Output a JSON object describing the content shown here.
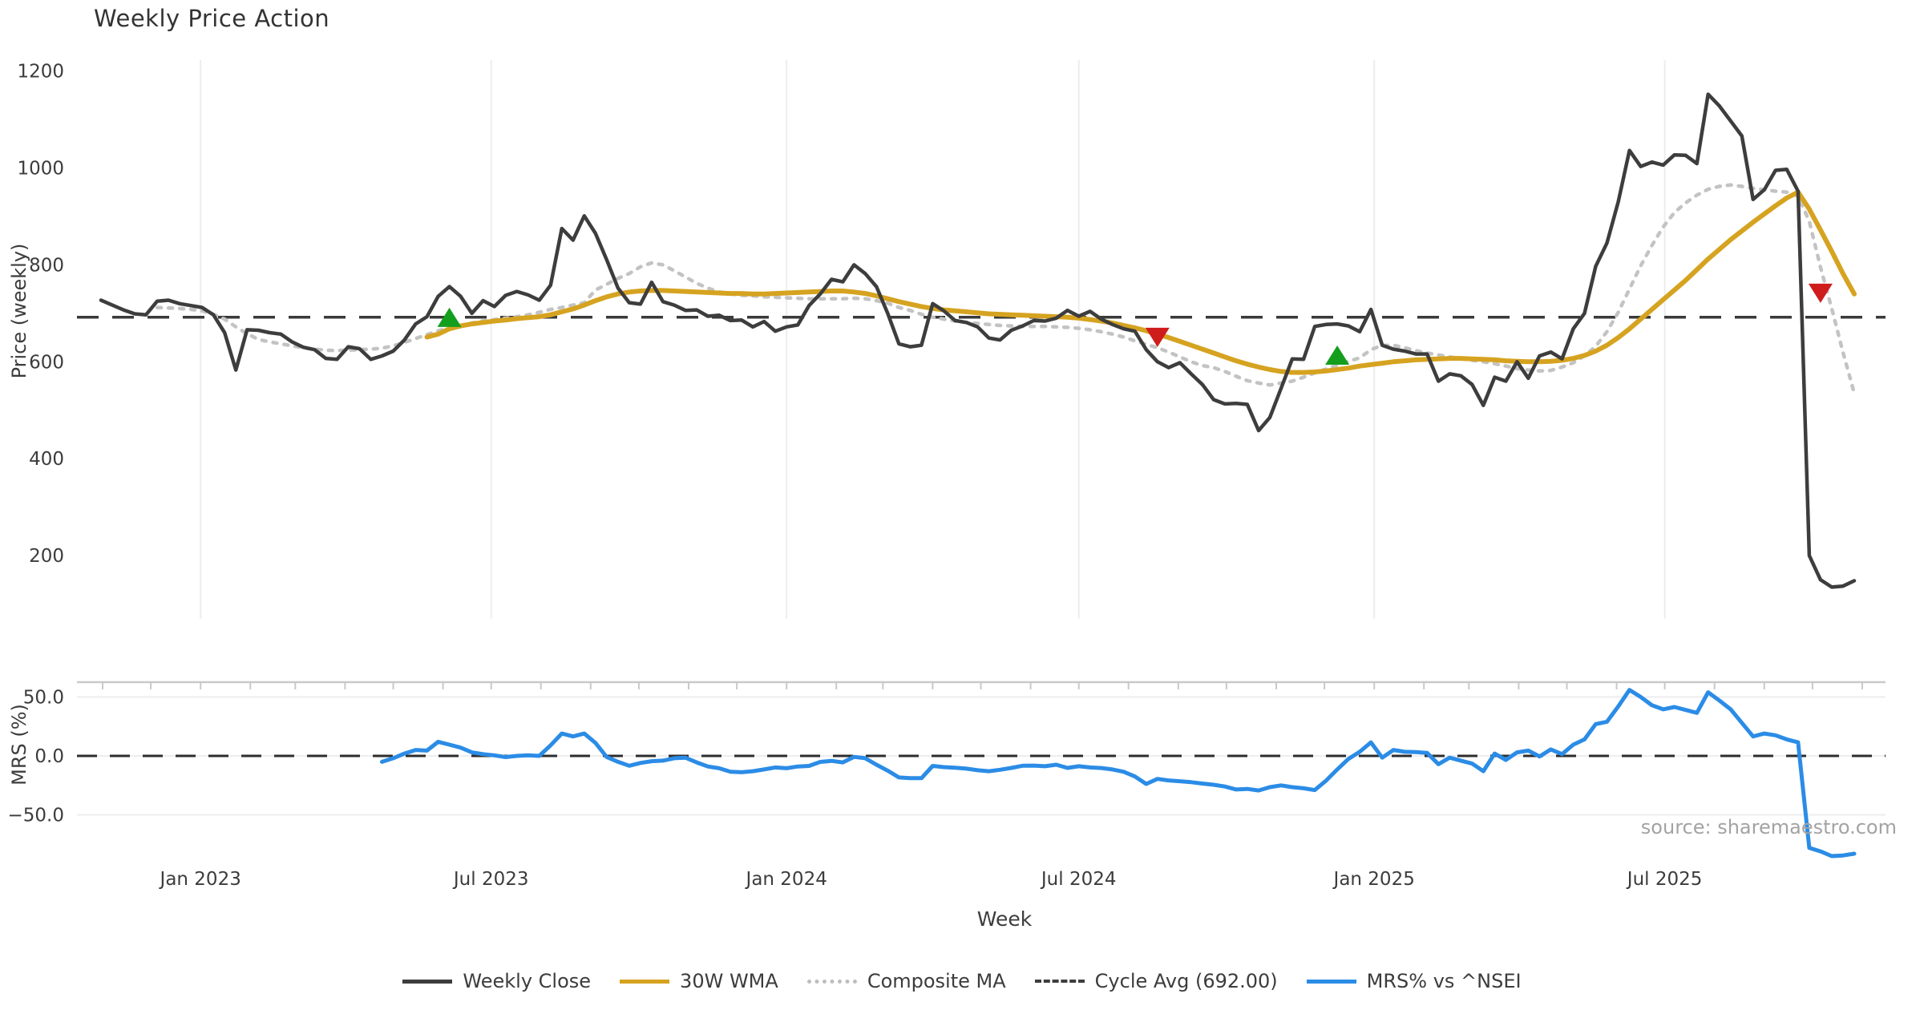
{
  "title": "Weekly Price Action",
  "source_note": "source: sharemaestro.com",
  "colors": {
    "weekly_close": "#3d3d3d",
    "wma30": "#d6a320",
    "composite_ma": "#c3c3c3",
    "cycle_avg": "#3a3a3a",
    "mrs": "#2b8ce6",
    "buy_marker": "#149e1e",
    "sell_marker": "#cf1c1c",
    "grid": "#ededed",
    "spine": "#c9c9c9",
    "tick_text": "#3c3c3c"
  },
  "axes": {
    "price": {
      "label": "Price (weekly)",
      "tick_values": [
        1200,
        1000,
        800,
        600,
        400,
        200
      ]
    },
    "mrs": {
      "label": "MRS (%)",
      "tick_labels": [
        "50.0",
        "0.0",
        "−50.0"
      ],
      "tick_values": [
        50,
        0,
        -50
      ]
    },
    "x": {
      "label": "Week",
      "ticks": [
        {
          "label": "Jan 2023",
          "date": "2023-01-01"
        },
        {
          "label": "Jul 2023",
          "date": "2023-07-01"
        },
        {
          "label": "Jan 2024",
          "date": "2024-01-01"
        },
        {
          "label": "Jul 2024",
          "date": "2024-07-01"
        },
        {
          "label": "Jan 2025",
          "date": "2025-01-01"
        },
        {
          "label": "Jul 2025",
          "date": "2025-07-01"
        }
      ]
    }
  },
  "legend": [
    {
      "label": "Weekly Close",
      "style": "solid",
      "color": "#3d3d3d"
    },
    {
      "label": "30W WMA",
      "style": "solid",
      "color": "#d6a320"
    },
    {
      "label": "Composite MA",
      "style": "dotted",
      "color": "#bdbdbd"
    },
    {
      "label": "Cycle Avg (692.00)",
      "style": "dashed",
      "color": "#3d3d3d"
    },
    {
      "label": "MRS% vs ^NSEI",
      "style": "solid",
      "color": "#2b8ce6"
    }
  ],
  "chart_data": {
    "type": "line",
    "panels": [
      {
        "name": "price",
        "ylabel": "Price (weekly)",
        "ylim": [
          70,
          1220
        ],
        "grid": "vertical-only"
      },
      {
        "name": "mrs",
        "ylabel": "MRS (%)",
        "ylim": [
          -90,
          63
        ],
        "grid": "horizontal-only"
      }
    ],
    "xlabel": "Week",
    "week_start": "2022-10-31",
    "weeks": 157,
    "cycle_avg": 692.0,
    "series": [
      {
        "name": "Weekly Close",
        "panel": "price",
        "style": "solid",
        "color": "#3d3d3d",
        "values": [
          727,
          717,
          707,
          699,
          697,
          725,
          727,
          720,
          716,
          712,
          697,
          660,
          583,
          666,
          665,
          660,
          657,
          641,
          630,
          625,
          607,
          605,
          631,
          627,
          605,
          612,
          622,
          645,
          678,
          693,
          735,
          755,
          735,
          700,
          726,
          714,
          737,
          745,
          738,
          727,
          758,
          875,
          851,
          901,
          865,
          810,
          752,
          722,
          719,
          764,
          724,
          717,
          706,
          707,
          694,
          696,
          685,
          686,
          672,
          683,
          663,
          672,
          676,
          716,
          740,
          770,
          765,
          800,
          782,
          755,
          700,
          637,
          631,
          634,
          720,
          705,
          685,
          681,
          672,
          649,
          645,
          665,
          674,
          685,
          684,
          690,
          706,
          694,
          704,
          688,
          677,
          668,
          663,
          625,
          600,
          588,
          598,
          575,
          553,
          522,
          513,
          514,
          512,
          458,
          485,
          545,
          606,
          605,
          673,
          677,
          678,
          674,
          662,
          708,
          634,
          626,
          622,
          616,
          616,
          560,
          575,
          571,
          553,
          510,
          568,
          560,
          600,
          566,
          612,
          620,
          606,
          668,
          700,
          797,
          845,
          930,
          1036,
          1003,
          1012,
          1006,
          1027,
          1026,
          1009,
          1152,
          1128,
          1097,
          1066,
          935,
          955,
          995,
          997,
          952,
          200,
          150,
          135,
          137,
          148
        ]
      },
      {
        "name": "30W WMA",
        "panel": "price",
        "style": "solid",
        "color": "#d6a320",
        "values": [
          null,
          null,
          null,
          null,
          null,
          null,
          null,
          null,
          null,
          null,
          null,
          null,
          null,
          null,
          null,
          null,
          null,
          null,
          null,
          null,
          null,
          null,
          null,
          null,
          null,
          null,
          null,
          null,
          null,
          651,
          657,
          668,
          674,
          678,
          681,
          684,
          686,
          689,
          691,
          693,
          697,
          703,
          709,
          717,
          726,
          734,
          740,
          744,
          746,
          747,
          747,
          746,
          745,
          744,
          743,
          742,
          741,
          741,
          740,
          740,
          741,
          742,
          743,
          744,
          745,
          746,
          746,
          744,
          741,
          736,
          730,
          724,
          719,
          714,
          710,
          707,
          705,
          703,
          701,
          699,
          698,
          697,
          696,
          695,
          694,
          693,
          692,
          690,
          687,
          684,
          680,
          675,
          670,
          664,
          657,
          650,
          642,
          634,
          626,
          618,
          610,
          602,
          595,
          589,
          584,
          580,
          578,
          578,
          579,
          581,
          584,
          587,
          591,
          594,
          597,
          600,
          602,
          604,
          605,
          606,
          607,
          607,
          606,
          605,
          604,
          602,
          601,
          600,
          600,
          601,
          603,
          607,
          613,
          622,
          634,
          650,
          668,
          688,
          708,
          728,
          748,
          768,
          790,
          812,
          832,
          852,
          870,
          888,
          905,
          922,
          938,
          950,
          915,
          872,
          828,
          782,
          740
        ]
      },
      {
        "name": "Composite MA",
        "panel": "price",
        "style": "dotted",
        "color": "#c3c3c3",
        "values": [
          null,
          null,
          null,
          null,
          null,
          712,
          711,
          710,
          708,
          705,
          698,
          688,
          672,
          658,
          646,
          641,
          637,
          633,
          629,
          626,
          624,
          623,
          624,
          625,
          626,
          628,
          633,
          640,
          648,
          656,
          664,
          670,
          675,
          680,
          684,
          687,
          690,
          693,
          697,
          702,
          708,
          712,
          717,
          722,
          748,
          760,
          772,
          782,
          796,
          804,
          800,
          788,
          775,
          762,
          752,
          744,
          740,
          737,
          736,
          734,
          733,
          732,
          731,
          730,
          730,
          730,
          730,
          731,
          730,
          726,
          721,
          712,
          706,
          698,
          692,
          688,
          684,
          681,
          679,
          677,
          675,
          674,
          673,
          673,
          673,
          672,
          671,
          669,
          666,
          662,
          657,
          651,
          643,
          636,
          629,
          620,
          610,
          600,
          592,
          588,
          580,
          570,
          561,
          556,
          552,
          556,
          560,
          568,
          577,
          585,
          593,
          601,
          608,
          625,
          634,
          634,
          629,
          623,
          618,
          614,
          610,
          607,
          603,
          600,
          596,
          591,
          586,
          583,
          581,
          582,
          589,
          598,
          612,
          632,
          662,
          702,
          750,
          798,
          840,
          878,
          908,
          928,
          944,
          956,
          962,
          965,
          962,
          958,
          955,
          952,
          950,
          942,
          890,
          795,
          710,
          620,
          535
        ]
      },
      {
        "name": "MRS% vs ^NSEI",
        "panel": "mrs",
        "style": "solid",
        "color": "#2b8ce6",
        "values": [
          null,
          null,
          null,
          null,
          null,
          null,
          null,
          null,
          null,
          null,
          null,
          null,
          null,
          null,
          null,
          null,
          null,
          null,
          null,
          null,
          null,
          null,
          null,
          null,
          null,
          -5,
          -2,
          2,
          5,
          4.5,
          12,
          9.5,
          7,
          3,
          1.5,
          0.5,
          -1,
          0,
          0.5,
          0,
          9,
          19,
          16.5,
          19,
          11,
          -1,
          -5,
          -8.4,
          -6,
          -4.5,
          -4,
          -2,
          -1.5,
          -5.5,
          -9,
          -10.5,
          -13.5,
          -13.9,
          -13,
          -11.5,
          -9.8,
          -10.5,
          -9,
          -8.5,
          -5.1,
          -4.2,
          -5.5,
          -0.8,
          -2,
          -7.5,
          -12.5,
          -18.3,
          -18.9,
          -18.9,
          -8.5,
          -9.5,
          -10,
          -10.8,
          -12.2,
          -13,
          -11.8,
          -10.2,
          -8.4,
          -8.2,
          -8.8,
          -7.5,
          -10.2,
          -8.8,
          -9.8,
          -10.3,
          -11.5,
          -13.5,
          -17.5,
          -23.8,
          -19.5,
          -20.8,
          -21.5,
          -22.3,
          -23.5,
          -24.5,
          -26,
          -28.5,
          -28,
          -29.3,
          -26.5,
          -25,
          -26.5,
          -27.5,
          -29,
          -21,
          -11.5,
          -2.5,
          3.5,
          11.5,
          -1.5,
          5,
          3.5,
          3.2,
          2.5,
          -7,
          -1.5,
          -4,
          -6.5,
          -13,
          2,
          -3.5,
          3,
          4.5,
          -0.5,
          5.5,
          1.5,
          9.5,
          14,
          27,
          29,
          42,
          56,
          50,
          43,
          39.5,
          41.5,
          39,
          36.5,
          54,
          47,
          39.5,
          28,
          16.5,
          19,
          17.5,
          14,
          11.5,
          -78,
          -81,
          -85,
          -84.5,
          -83
        ]
      }
    ],
    "markers": {
      "buy": [
        {
          "week_index": 31,
          "date": "2023-06-05",
          "price": 690
        },
        {
          "week_index": 110,
          "date": "2024-12-09",
          "price": 612
        }
      ],
      "sell": [
        {
          "week_index": 94,
          "date": "2024-08-19",
          "price": 652
        },
        {
          "week_index": 153,
          "date": "2025-10-06",
          "price": 743
        }
      ]
    }
  }
}
